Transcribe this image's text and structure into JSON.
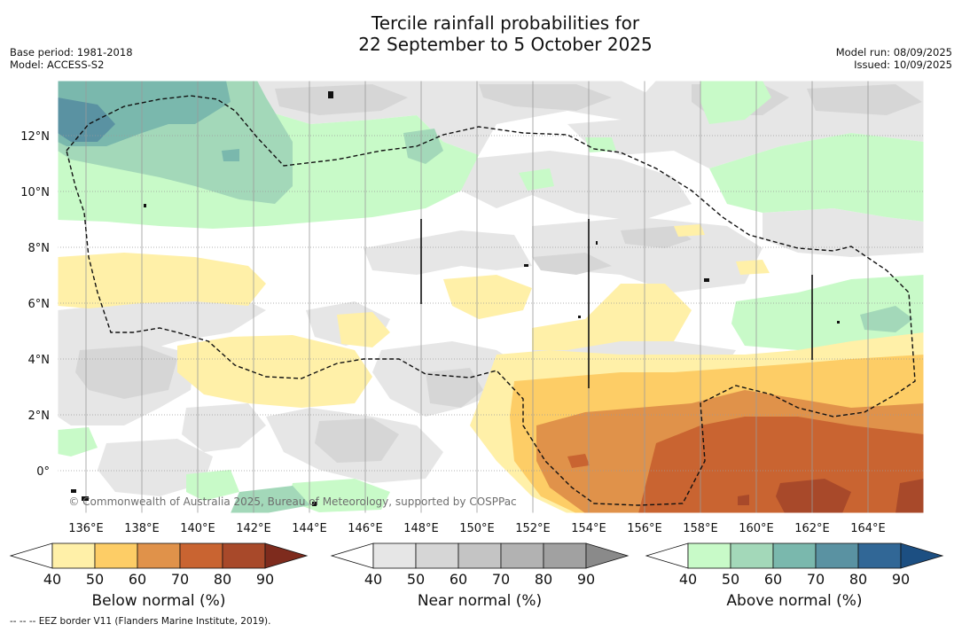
{
  "title_line1": "Tercile rainfall probabilities for",
  "title_line2": "22 September to 5 October 2025",
  "meta_left": [
    "Base period: 1981-2018",
    "Model: ACCESS-S2"
  ],
  "meta_right": [
    "Model run: 08/09/2025",
    "Issued: 10/09/2025"
  ],
  "x_ticks": [
    "136°E",
    "138°E",
    "140°E",
    "142°E",
    "144°E",
    "146°E",
    "148°E",
    "150°E",
    "152°E",
    "154°E",
    "156°E",
    "158°E",
    "160°E",
    "162°E",
    "164°E"
  ],
  "y_ticks": [
    "12°N",
    "10°N",
    "8°N",
    "6°N",
    "4°N",
    "2°N",
    "0°"
  ],
  "watermark": "© Commonwealth of Australia 2025, Bureau of Meteorology, supported by COSPPac",
  "colorbars": [
    {
      "title": "Below normal (%)",
      "labels": [
        "40",
        "50",
        "60",
        "70",
        "80",
        "90"
      ],
      "colors": [
        "#fff0a8",
        "#fdcd66",
        "#e0924a",
        "#c96431",
        "#a8492a",
        "#7e2b1d"
      ]
    },
    {
      "title": "Near normal (%)",
      "labels": [
        "40",
        "50",
        "60",
        "70",
        "80",
        "90"
      ],
      "colors": [
        "#e6e6e6",
        "#d6d6d6",
        "#c4c4c4",
        "#b2b2b2",
        "#a1a1a1",
        "#8a8a8a"
      ]
    },
    {
      "title": "Above normal (%)",
      "labels": [
        "40",
        "50",
        "60",
        "70",
        "80",
        "90"
      ],
      "colors": [
        "#c8fac8",
        "#a3d8b9",
        "#7ab8ad",
        "#5a92a2",
        "#316796",
        "#1c4f82"
      ]
    }
  ],
  "footer": "-- -- -- EEZ border V11 (Flanders Marine Institute, 2019)."
}
